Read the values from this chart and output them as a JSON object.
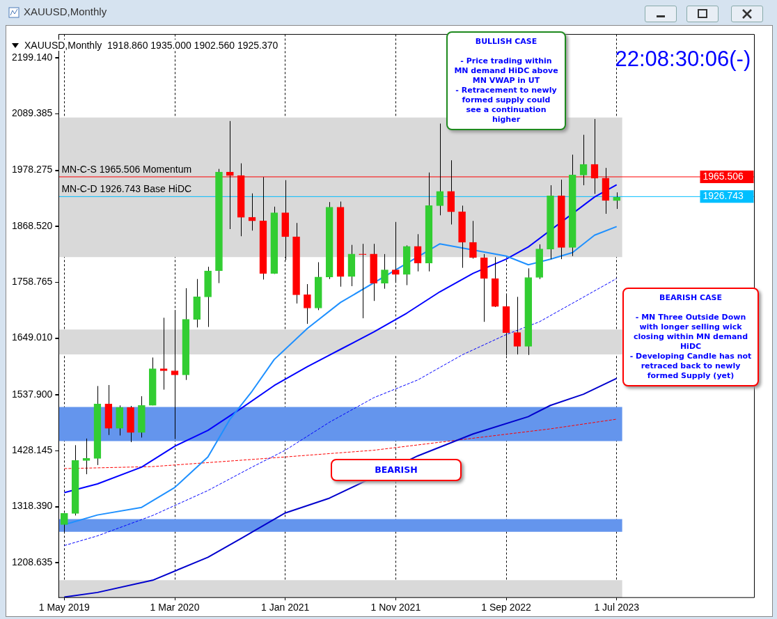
{
  "chart_data": {
    "type": "candlestick",
    "title": "XAUUSD,Monthly  1918.860 1935.000 1902.560 1925.370",
    "subtitle": "XAUUSD,Monthly",
    "categories": [
      "1 May 2019",
      null,
      null,
      null,
      null,
      null,
      null,
      null,
      null,
      null,
      "1 Mar 2020",
      null,
      null,
      null,
      null,
      null,
      null,
      null,
      null,
      null,
      "1 Jan 2021",
      null,
      null,
      null,
      null,
      null,
      null,
      null,
      null,
      null,
      "1 Nov 2021",
      null,
      null,
      null,
      null,
      null,
      null,
      null,
      null,
      null,
      "1 Sep 2022",
      null,
      null,
      null,
      null,
      null,
      null,
      null,
      null,
      null,
      "1 Jul 2023"
    ],
    "ohlc": [
      [
        1283,
        1306,
        1266,
        1305
      ],
      [
        1305,
        1439,
        1301,
        1409
      ],
      [
        1409,
        1452,
        1382,
        1413
      ],
      [
        1413,
        1555,
        1400,
        1520
      ],
      [
        1520,
        1557,
        1459,
        1472
      ],
      [
        1472,
        1517,
        1458,
        1513
      ],
      [
        1513,
        1516,
        1445,
        1464
      ],
      [
        1464,
        1535,
        1454,
        1517
      ],
      [
        1517,
        1611,
        1517,
        1589
      ],
      [
        1589,
        1689,
        1548,
        1585
      ],
      [
        1585,
        1704,
        1451,
        1577
      ],
      [
        1577,
        1747,
        1567,
        1686
      ],
      [
        1686,
        1765,
        1670,
        1730
      ],
      [
        1730,
        1789,
        1671,
        1781
      ],
      [
        1781,
        1981,
        1757,
        1975
      ],
      [
        1975,
        2075,
        1863,
        1968
      ],
      [
        1968,
        1992,
        1849,
        1886
      ],
      [
        1886,
        1933,
        1860,
        1879
      ],
      [
        1879,
        1965,
        1764,
        1776
      ],
      [
        1776,
        1907,
        1775,
        1895
      ],
      [
        1895,
        1959,
        1802,
        1848
      ],
      [
        1848,
        1875,
        1717,
        1734
      ],
      [
        1734,
        1755,
        1677,
        1708
      ],
      [
        1708,
        1798,
        1704,
        1769
      ],
      [
        1769,
        1916,
        1765,
        1906
      ],
      [
        1906,
        1917,
        1750,
        1770
      ],
      [
        1770,
        1832,
        1751,
        1814
      ],
      [
        1814,
        1834,
        1688,
        1813
      ],
      [
        1814,
        1834,
        1722,
        1757
      ],
      [
        1757,
        1814,
        1746,
        1783
      ],
      [
        1783,
        1877,
        1759,
        1774
      ],
      [
        1774,
        1831,
        1753,
        1829
      ],
      [
        1829,
        1853,
        1780,
        1796
      ],
      [
        1796,
        1974,
        1780,
        1909
      ],
      [
        1909,
        2070,
        1890,
        1937
      ],
      [
        1937,
        1998,
        1872,
        1897
      ],
      [
        1897,
        1909,
        1787,
        1837
      ],
      [
        1837,
        1879,
        1805,
        1807
      ],
      [
        1807,
        1814,
        1681,
        1766
      ],
      [
        1766,
        1808,
        1710,
        1711
      ],
      [
        1711,
        1735,
        1615,
        1660
      ],
      [
        1660,
        1730,
        1617,
        1633
      ],
      [
        1633,
        1786,
        1616,
        1768
      ],
      [
        1768,
        1833,
        1765,
        1824
      ],
      [
        1824,
        1949,
        1804,
        1928
      ],
      [
        1928,
        1960,
        1804,
        1827
      ],
      [
        1827,
        2009,
        1810,
        1969
      ],
      [
        1969,
        2048,
        1949,
        1990
      ],
      [
        1990,
        2079,
        1932,
        1963
      ],
      [
        1963,
        1983,
        1893,
        1919
      ],
      [
        1918.86,
        1935,
        1902.56,
        1925.37
      ]
    ],
    "colors": [
      "#32cd32",
      "#32cd32",
      "#32cd32",
      "#32cd32",
      "#ff0000",
      "#32cd32",
      "#ff0000",
      "#32cd32",
      "#32cd32",
      "#ff0000",
      "#ff0000",
      "#32cd32",
      "#32cd32",
      "#32cd32",
      "#32cd32",
      "#ff0000",
      "#ff0000",
      "#ff0000",
      "#ff0000",
      "#32cd32",
      "#ff0000",
      "#ff0000",
      "#ff0000",
      "#32cd32",
      "#32cd32",
      "#ff0000",
      "#32cd32",
      "#ff0000",
      "#ff0000",
      "#32cd32",
      "#ff0000",
      "#32cd32",
      "#ff0000",
      "#32cd32",
      "#32cd32",
      "#ff0000",
      "#ff0000",
      "#ff0000",
      "#ff0000",
      "#ff0000",
      "#ff0000",
      "#ff0000",
      "#32cd32",
      "#32cd32",
      "#32cd32",
      "#ff0000",
      "#32cd32",
      "#32cd32",
      "#ff0000",
      "#ff0000",
      "#32cd32"
    ],
    "series": [
      {
        "type": "line",
        "color": "#1e90ff",
        "line_style": "solid",
        "values": [
          1283,
          null,
          null,
          1302,
          null,
          null,
          null,
          1317,
          null,
          null,
          1356,
          null,
          null,
          1416,
          null,
          1490,
          null,
          1545,
          null,
          1607,
          null,
          null,
          1668,
          null,
          null,
          1719,
          null,
          null,
          null,
          null,
          null,
          null,
          null,
          null,
          1834,
          null,
          null,
          null,
          null,
          null,
          1810,
          null,
          1793,
          null,
          1804,
          null,
          1817,
          null,
          1851,
          null,
          1868
        ]
      },
      {
        "type": "line",
        "color": "#0000ff",
        "line_style": "solid",
        "values": [
          1346,
          null,
          null,
          1363,
          null,
          null,
          null,
          1396,
          null,
          null,
          1437,
          null,
          null,
          1468,
          null,
          null,
          1511,
          null,
          null,
          1556,
          null,
          null,
          1593,
          null,
          null,
          1627,
          null,
          null,
          1661,
          null,
          null,
          1698,
          null,
          null,
          1740,
          null,
          null,
          1776,
          null,
          null,
          1804,
          null,
          1828,
          null,
          null,
          null,
          null,
          null,
          1926,
          null,
          1950
        ]
      },
      {
        "type": "line",
        "color": "#0000ff",
        "line_style": "dashed",
        "values": [
          1242,
          null,
          null,
          1261,
          null,
          null,
          null,
          null,
          1301,
          null,
          null,
          null,
          null,
          1350,
          null,
          null,
          null,
          1396,
          null,
          null,
          1429,
          null,
          null,
          null,
          1484,
          null,
          null,
          null,
          1532,
          null,
          null,
          null,
          1567,
          null,
          null,
          null,
          1616,
          null,
          null,
          null,
          1656,
          null,
          null,
          1681,
          null,
          null,
          null,
          null,
          null,
          null,
          1766
        ]
      },
      {
        "type": "line",
        "color": "#0000cd",
        "line_style": "solid",
        "values": [
          1141,
          null,
          null,
          1150,
          null,
          null,
          null,
          null,
          1174,
          null,
          null,
          null,
          null,
          1219,
          null,
          null,
          1256,
          null,
          null,
          null,
          1306,
          null,
          null,
          null,
          1335,
          null,
          null,
          null,
          null,
          null,
          null,
          null,
          1418,
          null,
          null,
          null,
          null,
          1461,
          null,
          null,
          null,
          null,
          1495,
          null,
          1517,
          null,
          null,
          1539,
          null,
          null,
          1570
        ]
      },
      {
        "type": "line",
        "color": "#ff0000",
        "line_style": "dashed",
        "values": [
          1393,
          null,
          null,
          null,
          null,
          null,
          null,
          null,
          1397,
          null,
          null,
          null,
          null,
          null,
          null,
          null,
          null,
          1411,
          null,
          null,
          null,
          null,
          null,
          null,
          null,
          null,
          null,
          null,
          1429,
          null,
          null,
          null,
          null,
          null,
          null,
          null,
          null,
          null,
          null,
          null,
          null,
          null,
          null,
          null,
          1471,
          null,
          null,
          null,
          null,
          null,
          1490
        ]
      }
    ],
    "ylim": [
      1140,
      2245
    ],
    "yticks": [
      {
        "value": 2199.14,
        "label": "2199.140"
      },
      {
        "value": 2089.385,
        "label": "2089.385"
      },
      {
        "value": 1978.275,
        "label": "1978.275"
      },
      {
        "value": 1868.52,
        "label": "1868.520"
      },
      {
        "value": 1758.765,
        "label": "1758.765"
      },
      {
        "value": 1649.01,
        "label": "1649.010"
      },
      {
        "value": 1537.9,
        "label": "1537.900"
      },
      {
        "value": 1428.145,
        "label": "1428.145"
      },
      {
        "value": 1318.39,
        "label": "1318.390"
      },
      {
        "value": 1208.635,
        "label": "1208.635"
      }
    ],
    "ref_lines": [
      {
        "axis": "y",
        "value": 1965.506,
        "label": "MN-C-S 1965.506 Momentum",
        "color": "#ff0000"
      },
      {
        "axis": "y",
        "value": 1926.743,
        "label": "MN-C-D 1926.743 Base HiDC",
        "color": "#00bfff"
      }
    ],
    "bands": [
      {
        "axis": "y",
        "from": 1447,
        "to": 1514,
        "color": "#6495ed"
      },
      {
        "axis": "y",
        "from": 1269,
        "to": 1294,
        "color": "#6495ed"
      },
      {
        "axis": "y",
        "from": 1808,
        "to": 2082,
        "color": "#d9d9d9"
      },
      {
        "axis": "y",
        "from": 1617,
        "to": 1666,
        "color": "#d9d9d9"
      },
      {
        "axis": "y",
        "from": 1140,
        "to": 1174,
        "color": "#d9d9d9"
      }
    ],
    "annotations": [
      "BULLISH CASE\n\n- Price trading within\nMN demand HiDC above\nMN VWAP in UT\n- Retracement to newly\nformed supply could\nsee a continuation\nhigher",
      "BEARISH CASE\n\n- MN Three Outside Down\nwith longer selling wick\nclosing within MN demand\nHiDC\n- Developing Candle has not\nretraced back to newly\nformed Supply (yet)",
      "BEARISH",
      "22:08:30:06(-)",
      {
        "text": "1965.506",
        "y": 1965.506
      },
      {
        "text": "1926.743",
        "y": 1926.743
      }
    ],
    "grid": "x",
    "legend": false,
    "marker": "none"
  }
}
